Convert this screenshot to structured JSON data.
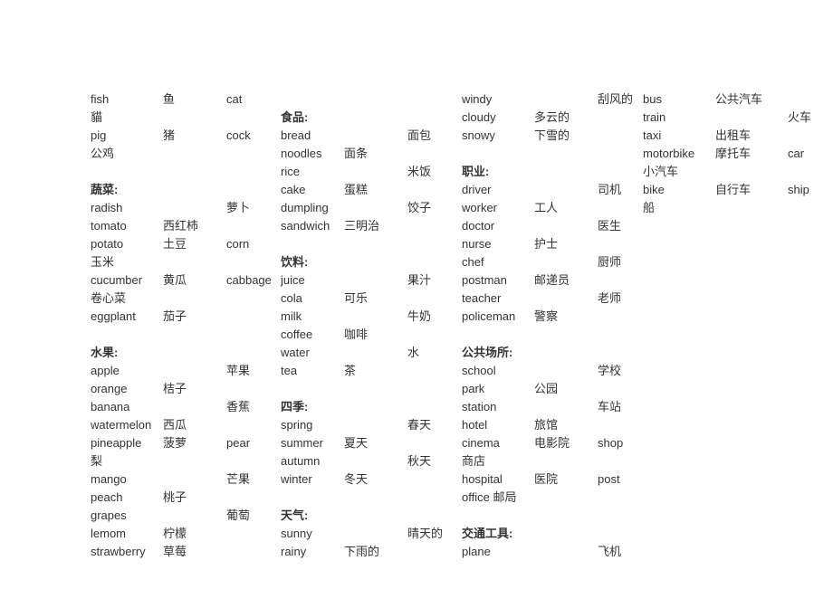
{
  "columns": [
    {
      "widths": [
        80,
        70,
        60
      ],
      "rows": [
        [
          "fish",
          "鱼",
          "cat"
        ],
        [
          "貓",
          "",
          ""
        ],
        [
          "pig",
          "猪",
          "cock"
        ],
        [
          "公鸡",
          "",
          ""
        ],
        [
          "",
          "",
          ""
        ],
        [
          "*蔬菜:",
          "",
          ""
        ],
        [
          "radish",
          "",
          "萝卜"
        ],
        [
          "tomato",
          "西红柿",
          ""
        ],
        [
          "potato",
          "土豆",
          "corn"
        ],
        [
          "玉米",
          "",
          ""
        ],
        [
          "cucumber",
          "黄瓜",
          "cabbage"
        ],
        [
          "卷心菜",
          "",
          ""
        ],
        [
          "eggplant",
          "茄子",
          ""
        ],
        [
          "",
          "",
          ""
        ],
        [
          "*水果:",
          "",
          ""
        ],
        [
          "apple",
          "",
          "苹果"
        ],
        [
          "orange",
          "桔子",
          ""
        ],
        [
          "banana",
          "",
          "香蕉"
        ],
        [
          "watermelon",
          "西瓜",
          ""
        ],
        [
          "pineapple",
          "菠萝",
          "pear"
        ],
        [
          "梨",
          "",
          ""
        ],
        [
          "mango",
          "",
          "芒果"
        ],
        [
          "peach",
          "桃子",
          ""
        ],
        [
          "grapes",
          "",
          "葡萄"
        ],
        [
          "lemom",
          "柠檬",
          ""
        ],
        [
          "strawberry",
          "草莓",
          ""
        ]
      ]
    },
    {
      "widths": [
        70,
        70,
        60
      ],
      "rows": [
        [
          "",
          "",
          ""
        ],
        [
          "*食品:",
          "",
          ""
        ],
        [
          "bread",
          "",
          "面包"
        ],
        [
          "noodles",
          "面条",
          ""
        ],
        [
          "rice",
          "",
          "米饭"
        ],
        [
          "cake",
          "蛋糕",
          ""
        ],
        [
          "dumpling",
          "",
          "饺子"
        ],
        [
          "sandwich",
          "三明治",
          ""
        ],
        [
          "",
          "",
          ""
        ],
        [
          "*饮料:",
          "",
          ""
        ],
        [
          "juice",
          "",
          "果汁"
        ],
        [
          "cola",
          "可乐",
          ""
        ],
        [
          "milk",
          "",
          "牛奶"
        ],
        [
          "coffee",
          "咖啡",
          ""
        ],
        [
          "water",
          "",
          "水"
        ],
        [
          "tea",
          "茶",
          ""
        ],
        [
          "",
          "",
          ""
        ],
        [
          "*四季:",
          "",
          ""
        ],
        [
          "spring",
          "",
          "春天"
        ],
        [
          "summer",
          "夏天",
          ""
        ],
        [
          "autumn",
          "",
          "秋天"
        ],
        [
          "winter",
          "冬天",
          ""
        ],
        [
          "",
          "",
          ""
        ],
        [
          "*天气:",
          "",
          ""
        ],
        [
          "sunny",
          "",
          "晴天的"
        ],
        [
          "rainy",
          "下雨的",
          ""
        ]
      ]
    },
    {
      "widths": [
        80,
        70,
        50
      ],
      "rows": [
        [
          "windy",
          "",
          "刮风的"
        ],
        [
          "cloudy",
          "多云的",
          ""
        ],
        [
          "snowy",
          "下雪的",
          ""
        ],
        [
          "",
          "",
          ""
        ],
        [
          "*职业:",
          "",
          ""
        ],
        [
          "driver",
          "",
          "司机"
        ],
        [
          "worker",
          "工人",
          ""
        ],
        [
          "doctor",
          "",
          "医生"
        ],
        [
          "nurse",
          "护士",
          ""
        ],
        [
          "chef",
          "",
          "厨师"
        ],
        [
          "postman",
          "邮递员",
          ""
        ],
        [
          "teacher",
          "",
          "老师"
        ],
        [
          "policeman",
          "警察",
          ""
        ],
        [
          "",
          "",
          ""
        ],
        [
          "*公共场所:",
          "",
          ""
        ],
        [
          "school",
          "",
          "学校"
        ],
        [
          "park",
          "公园",
          ""
        ],
        [
          "station",
          "",
          "车站"
        ],
        [
          "hotel",
          "旅馆",
          ""
        ],
        [
          "cinema",
          "电影院",
          "shop"
        ],
        [
          "商店",
          "",
          ""
        ],
        [
          "hospital",
          "医院",
          "post"
        ],
        [
          "office   邮局",
          "",
          ""
        ],
        [
          "",
          "",
          ""
        ],
        [
          "*交通工具:",
          "",
          ""
        ],
        [
          "plane",
          "",
          "飞机"
        ]
      ]
    },
    {
      "widths": [
        80,
        80,
        40
      ],
      "rows": [
        [
          "bus",
          "公共汽车",
          ""
        ],
        [
          "train",
          "",
          "火车"
        ],
        [
          "taxi",
          "出租车",
          ""
        ],
        [
          "motorbike",
          "摩托车",
          "car"
        ],
        [
          "小汽车",
          "",
          ""
        ],
        [
          "bike",
          "自行车",
          "ship"
        ],
        [
          "船",
          "",
          ""
        ]
      ]
    }
  ]
}
